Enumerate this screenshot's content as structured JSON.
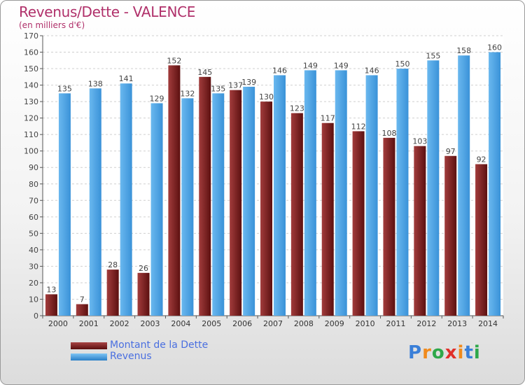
{
  "header": {
    "title": "Revenus/Dette - VALENCE",
    "subtitle": "(en milliers d'€)"
  },
  "legend": {
    "debt_label": "Montant de la Dette",
    "revenue_label": "Revenus"
  },
  "logo": {
    "text": "Proxiti",
    "letters": [
      "P",
      "r",
      "o",
      "x",
      "i",
      "t",
      "i"
    ],
    "colors": [
      "#3a7fd8",
      "#f08a1c",
      "#2ea84a",
      "#e0302a",
      "#f08a1c",
      "#3a7fd8",
      "#2ea84a"
    ]
  },
  "colors": {
    "debt": "#7a2424",
    "revenue": "#4aa3e6",
    "title": "#b0306a",
    "legend_text": "#4a6fe0"
  },
  "chart_data": {
    "type": "bar",
    "categories": [
      "2000",
      "2001",
      "2002",
      "2003",
      "2004",
      "2005",
      "2006",
      "2007",
      "2008",
      "2009",
      "2010",
      "2011",
      "2012",
      "2013",
      "2014"
    ],
    "series": [
      {
        "name": "Montant de la Dette",
        "values": [
          13,
          7,
          28,
          26,
          152,
          145,
          137,
          130,
          123,
          117,
          112,
          108,
          103,
          97,
          92
        ]
      },
      {
        "name": "Revenus",
        "values": [
          135,
          138,
          141,
          129,
          132,
          135,
          139,
          146,
          149,
          149,
          146,
          150,
          155,
          158,
          160
        ]
      }
    ],
    "ylim": [
      0,
      170
    ],
    "yticks": [
      0,
      10,
      20,
      30,
      40,
      50,
      60,
      70,
      80,
      90,
      100,
      110,
      120,
      130,
      140,
      150,
      160,
      170
    ],
    "grid": true
  }
}
